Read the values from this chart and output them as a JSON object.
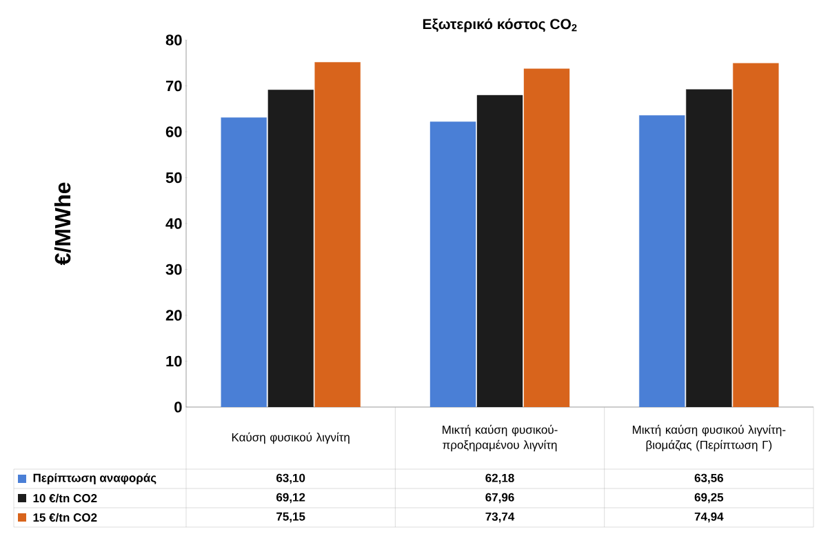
{
  "chart_data": {
    "type": "bar",
    "title": "Εξωτερικό κόστος CO$_{2}$",
    "ylabel": "€/MWhe",
    "categories": [
      "Καύση φυσικού λιγνίτη",
      "Μικτή καύση φυσικού-προξηραμένου λιγνίτη",
      "Μικτή καύση φυσικού λιγνίτη-βιομάζας (Περίπτωση Γ)"
    ],
    "series": [
      {
        "name": "Περίπτωση αναφοράς",
        "color": "#4a7fd6",
        "values": [
          63.1,
          62.18,
          63.56
        ],
        "value_labels": [
          "63,10",
          "62,18",
          "63,56"
        ]
      },
      {
        "name": "10 €/tn CO2",
        "color": "#1c1c1c",
        "values": [
          69.12,
          67.96,
          69.25
        ],
        "value_labels": [
          "69,12",
          "67,96",
          "69,25"
        ]
      },
      {
        "name": "15 €/tn CO2",
        "color": "#d8641c",
        "values": [
          75.15,
          73.74,
          74.94
        ],
        "value_labels": [
          "75,15",
          "73,74",
          "74,94"
        ]
      }
    ],
    "ylim": [
      0,
      80
    ],
    "yticks": [
      0,
      10,
      20,
      30,
      40,
      50,
      60,
      70,
      80
    ],
    "legend": "bottom"
  }
}
